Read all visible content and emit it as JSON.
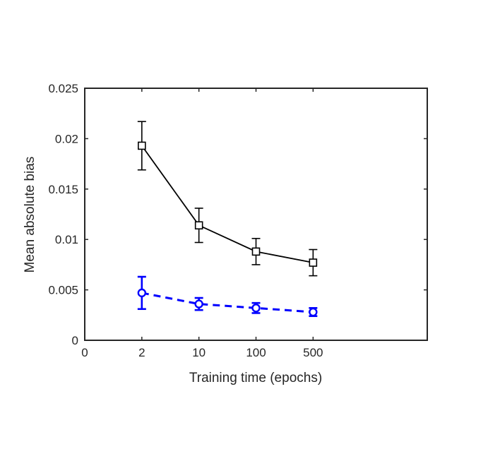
{
  "chart_data": {
    "type": "line",
    "xlabel": "Training time (epochs)",
    "ylabel": "Mean absolute bias",
    "x_tick_labels": [
      "0",
      "2",
      "10",
      "100",
      "500"
    ],
    "categories": [
      "2",
      "10",
      "100",
      "500"
    ],
    "ylim": [
      0,
      0.025
    ],
    "y_ticks": [
      0,
      0.005,
      0.01,
      0.015,
      0.02,
      0.025
    ],
    "y_tick_labels": [
      "0",
      "0.005",
      "0.01",
      "0.015",
      "0.02",
      "0.025"
    ],
    "grid": false,
    "box": true,
    "series": [
      {
        "color": "#000000",
        "line_style": "solid",
        "marker": "square",
        "values": [
          0.0193,
          0.0114,
          0.0088,
          0.0077
        ],
        "err_low": [
          0.0169,
          0.0097,
          0.0075,
          0.0064
        ],
        "err_high": [
          0.0217,
          0.0131,
          0.0101,
          0.009
        ]
      },
      {
        "color": "#0000ff",
        "line_style": "dashed",
        "marker": "circle",
        "values": [
          0.0047,
          0.0036,
          0.0032,
          0.0028
        ],
        "err_low": [
          0.0031,
          0.003,
          0.0027,
          0.0024
        ],
        "err_high": [
          0.0063,
          0.0042,
          0.0037,
          0.0032
        ]
      }
    ]
  }
}
